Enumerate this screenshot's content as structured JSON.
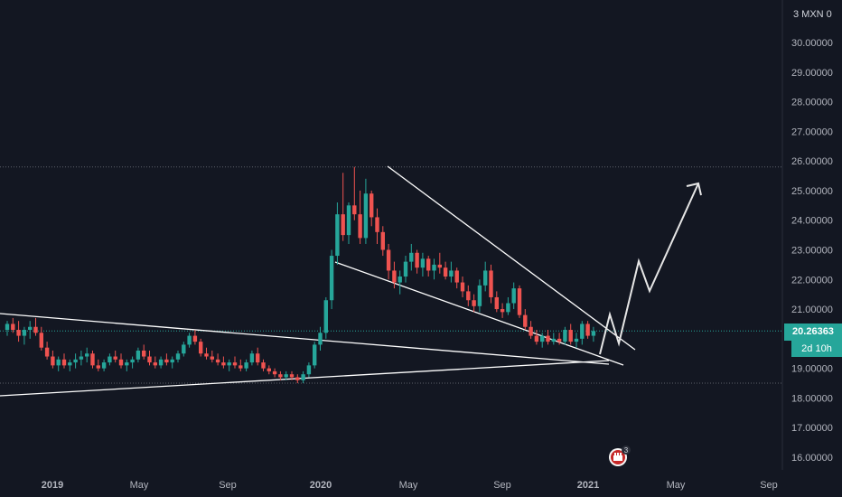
{
  "currency_label": "3 MXN 0",
  "last_price": "20.26363",
  "countdown": "2d 10h",
  "event_badge_count": "3",
  "colors": {
    "background": "#131722",
    "up": "#26a69a",
    "down": "#ef5350",
    "drawing": "#ffffff",
    "grid_dotted": "#5d606b"
  },
  "chart_data": {
    "type": "candlestick",
    "interval": "weekly",
    "symbol_quote_currency": "MXN",
    "ylim": [
      15.6,
      31.0
    ],
    "y_ticks": [
      "16.00000",
      "17.00000",
      "18.00000",
      "19.00000",
      "20.00000",
      "21.00000",
      "22.00000",
      "23.00000",
      "24.00000",
      "25.00000",
      "26.00000",
      "27.00000",
      "28.00000",
      "29.00000",
      "30.00000"
    ],
    "x_tick_labels": [
      "2019",
      "May",
      "Sep",
      "2020",
      "May",
      "Sep",
      "2021",
      "May",
      "Sep"
    ],
    "bold_x_ticks": [
      "2019",
      "2020",
      "2021"
    ],
    "horizontal_levels": [
      25.8,
      18.5
    ],
    "last_price_value": 20.26363,
    "candles": [
      [
        20.3,
        20.6,
        20.1,
        20.5
      ],
      [
        20.5,
        20.7,
        20.2,
        20.3
      ],
      [
        20.3,
        20.6,
        19.9,
        20.1
      ],
      [
        20.1,
        20.4,
        19.8,
        20.3
      ],
      [
        20.3,
        20.6,
        20.0,
        20.4
      ],
      [
        20.4,
        20.7,
        20.1,
        20.2
      ],
      [
        20.2,
        20.4,
        19.6,
        19.7
      ],
      [
        19.7,
        19.9,
        19.3,
        19.4
      ],
      [
        19.4,
        19.6,
        19.0,
        19.1
      ],
      [
        19.1,
        19.4,
        18.9,
        19.3
      ],
      [
        19.3,
        19.5,
        19.0,
        19.1
      ],
      [
        19.1,
        19.3,
        18.9,
        19.2
      ],
      [
        19.2,
        19.5,
        19.0,
        19.3
      ],
      [
        19.3,
        19.6,
        19.1,
        19.4
      ],
      [
        19.4,
        19.7,
        19.2,
        19.5
      ],
      [
        19.5,
        19.6,
        19.0,
        19.1
      ],
      [
        19.1,
        19.3,
        18.9,
        19.0
      ],
      [
        19.0,
        19.3,
        18.9,
        19.2
      ],
      [
        19.2,
        19.5,
        19.1,
        19.4
      ],
      [
        19.4,
        19.6,
        19.2,
        19.3
      ],
      [
        19.3,
        19.5,
        19.0,
        19.1
      ],
      [
        19.1,
        19.3,
        18.9,
        19.2
      ],
      [
        19.2,
        19.4,
        19.0,
        19.3
      ],
      [
        19.3,
        19.7,
        19.2,
        19.6
      ],
      [
        19.6,
        19.8,
        19.3,
        19.4
      ],
      [
        19.4,
        19.6,
        19.1,
        19.2
      ],
      [
        19.2,
        19.4,
        19.0,
        19.1
      ],
      [
        19.1,
        19.4,
        19.0,
        19.3
      ],
      [
        19.3,
        19.5,
        19.1,
        19.2
      ],
      [
        19.2,
        19.4,
        19.0,
        19.3
      ],
      [
        19.3,
        19.6,
        19.2,
        19.5
      ],
      [
        19.5,
        19.9,
        19.4,
        19.8
      ],
      [
        19.8,
        20.2,
        19.7,
        20.1
      ],
      [
        20.1,
        20.3,
        19.8,
        19.9
      ],
      [
        19.9,
        20.0,
        19.4,
        19.5
      ],
      [
        19.5,
        19.7,
        19.3,
        19.4
      ],
      [
        19.4,
        19.6,
        19.2,
        19.3
      ],
      [
        19.3,
        19.5,
        19.1,
        19.2
      ],
      [
        19.2,
        19.4,
        19.0,
        19.1
      ],
      [
        19.1,
        19.3,
        18.9,
        19.2
      ],
      [
        19.2,
        19.4,
        19.0,
        19.1
      ],
      [
        19.1,
        19.3,
        18.9,
        19.0
      ],
      [
        19.0,
        19.3,
        18.9,
        19.2
      ],
      [
        19.2,
        19.6,
        19.1,
        19.5
      ],
      [
        19.5,
        19.7,
        19.1,
        19.2
      ],
      [
        19.2,
        19.3,
        18.9,
        19.0
      ],
      [
        19.0,
        19.1,
        18.8,
        18.9
      ],
      [
        18.9,
        19.0,
        18.7,
        18.8
      ],
      [
        18.8,
        18.9,
        18.6,
        18.7
      ],
      [
        18.7,
        18.9,
        18.6,
        18.8
      ],
      [
        18.8,
        18.9,
        18.6,
        18.7
      ],
      [
        18.7,
        18.8,
        18.5,
        18.6
      ],
      [
        18.6,
        18.9,
        18.5,
        18.8
      ],
      [
        18.8,
        19.2,
        18.7,
        19.1
      ],
      [
        19.1,
        19.9,
        19.0,
        19.8
      ],
      [
        19.8,
        20.4,
        19.6,
        20.2
      ],
      [
        20.2,
        21.4,
        20.0,
        21.3
      ],
      [
        21.3,
        23.0,
        21.0,
        22.8
      ],
      [
        22.8,
        24.6,
        22.5,
        24.2
      ],
      [
        24.2,
        25.6,
        23.3,
        23.5
      ],
      [
        23.5,
        24.6,
        23.2,
        24.5
      ],
      [
        24.5,
        25.8,
        24.0,
        24.2
      ],
      [
        24.2,
        25.0,
        23.2,
        23.4
      ],
      [
        23.4,
        25.4,
        23.2,
        24.9
      ],
      [
        24.9,
        25.0,
        23.8,
        24.1
      ],
      [
        24.1,
        24.4,
        23.2,
        23.6
      ],
      [
        23.6,
        23.8,
        22.8,
        23.0
      ],
      [
        23.0,
        23.2,
        22.0,
        22.3
      ],
      [
        22.3,
        22.6,
        21.7,
        21.9
      ],
      [
        21.9,
        22.3,
        21.5,
        22.1
      ],
      [
        22.1,
        22.8,
        21.9,
        22.6
      ],
      [
        22.6,
        23.2,
        22.3,
        22.9
      ],
      [
        22.9,
        23.0,
        22.2,
        22.4
      ],
      [
        22.4,
        22.9,
        22.1,
        22.7
      ],
      [
        22.7,
        22.8,
        22.1,
        22.3
      ],
      [
        22.3,
        22.7,
        22.0,
        22.5
      ],
      [
        22.5,
        22.9,
        22.2,
        22.4
      ],
      [
        22.4,
        22.6,
        22.0,
        22.1
      ],
      [
        22.1,
        22.6,
        21.9,
        22.3
      ],
      [
        22.3,
        22.4,
        21.7,
        21.9
      ],
      [
        21.9,
        22.1,
        21.4,
        21.6
      ],
      [
        21.6,
        21.8,
        21.1,
        21.3
      ],
      [
        21.3,
        21.5,
        20.9,
        21.1
      ],
      [
        21.1,
        22.0,
        20.9,
        21.8
      ],
      [
        21.8,
        22.6,
        21.6,
        22.3
      ],
      [
        22.3,
        22.5,
        21.2,
        21.4
      ],
      [
        21.4,
        21.6,
        20.9,
        21.0
      ],
      [
        21.0,
        21.2,
        20.7,
        20.9
      ],
      [
        20.9,
        21.4,
        20.8,
        21.2
      ],
      [
        21.2,
        21.9,
        21.0,
        21.7
      ],
      [
        21.7,
        21.8,
        20.7,
        20.8
      ],
      [
        20.8,
        21.0,
        20.3,
        20.4
      ],
      [
        20.4,
        20.6,
        20.0,
        20.1
      ],
      [
        20.1,
        20.3,
        19.8,
        19.9
      ],
      [
        19.9,
        20.2,
        19.7,
        20.1
      ],
      [
        20.1,
        20.3,
        19.8,
        19.9
      ],
      [
        19.9,
        20.2,
        19.8,
        20.0
      ],
      [
        20.0,
        20.2,
        19.8,
        19.9
      ],
      [
        19.9,
        20.4,
        19.8,
        20.3
      ],
      [
        20.3,
        20.5,
        19.8,
        19.9
      ],
      [
        19.9,
        20.2,
        19.7,
        20.0
      ],
      [
        20.0,
        20.6,
        19.8,
        20.5
      ],
      [
        20.5,
        20.6,
        20.0,
        20.1
      ],
      [
        20.1,
        20.4,
        19.9,
        20.26
      ]
    ],
    "drawings": {
      "falling_wedge_upper": [
        [
          "2020-03-20",
          25.8
        ],
        [
          "2021-02-26",
          19.8
        ]
      ],
      "falling_wedge_lower": [
        [
          "2020-02-14",
          22.6
        ],
        [
          "2021-02-26",
          19.1
        ]
      ],
      "triangle_upper": [
        [
          "2018-12-01",
          20.9
        ],
        [
          "2021-02-26",
          19.1
        ]
      ],
      "triangle_lower": [
        [
          "2018-12-01",
          18.0
        ],
        [
          "2021-02-26",
          19.3
        ]
      ],
      "projection_path": [
        [
          20.1,
          20.8
        ],
        [
          20.3,
          20.3
        ],
        [
          22.6,
          21.6
        ],
        [
          25.4
        ]
      ]
    }
  }
}
